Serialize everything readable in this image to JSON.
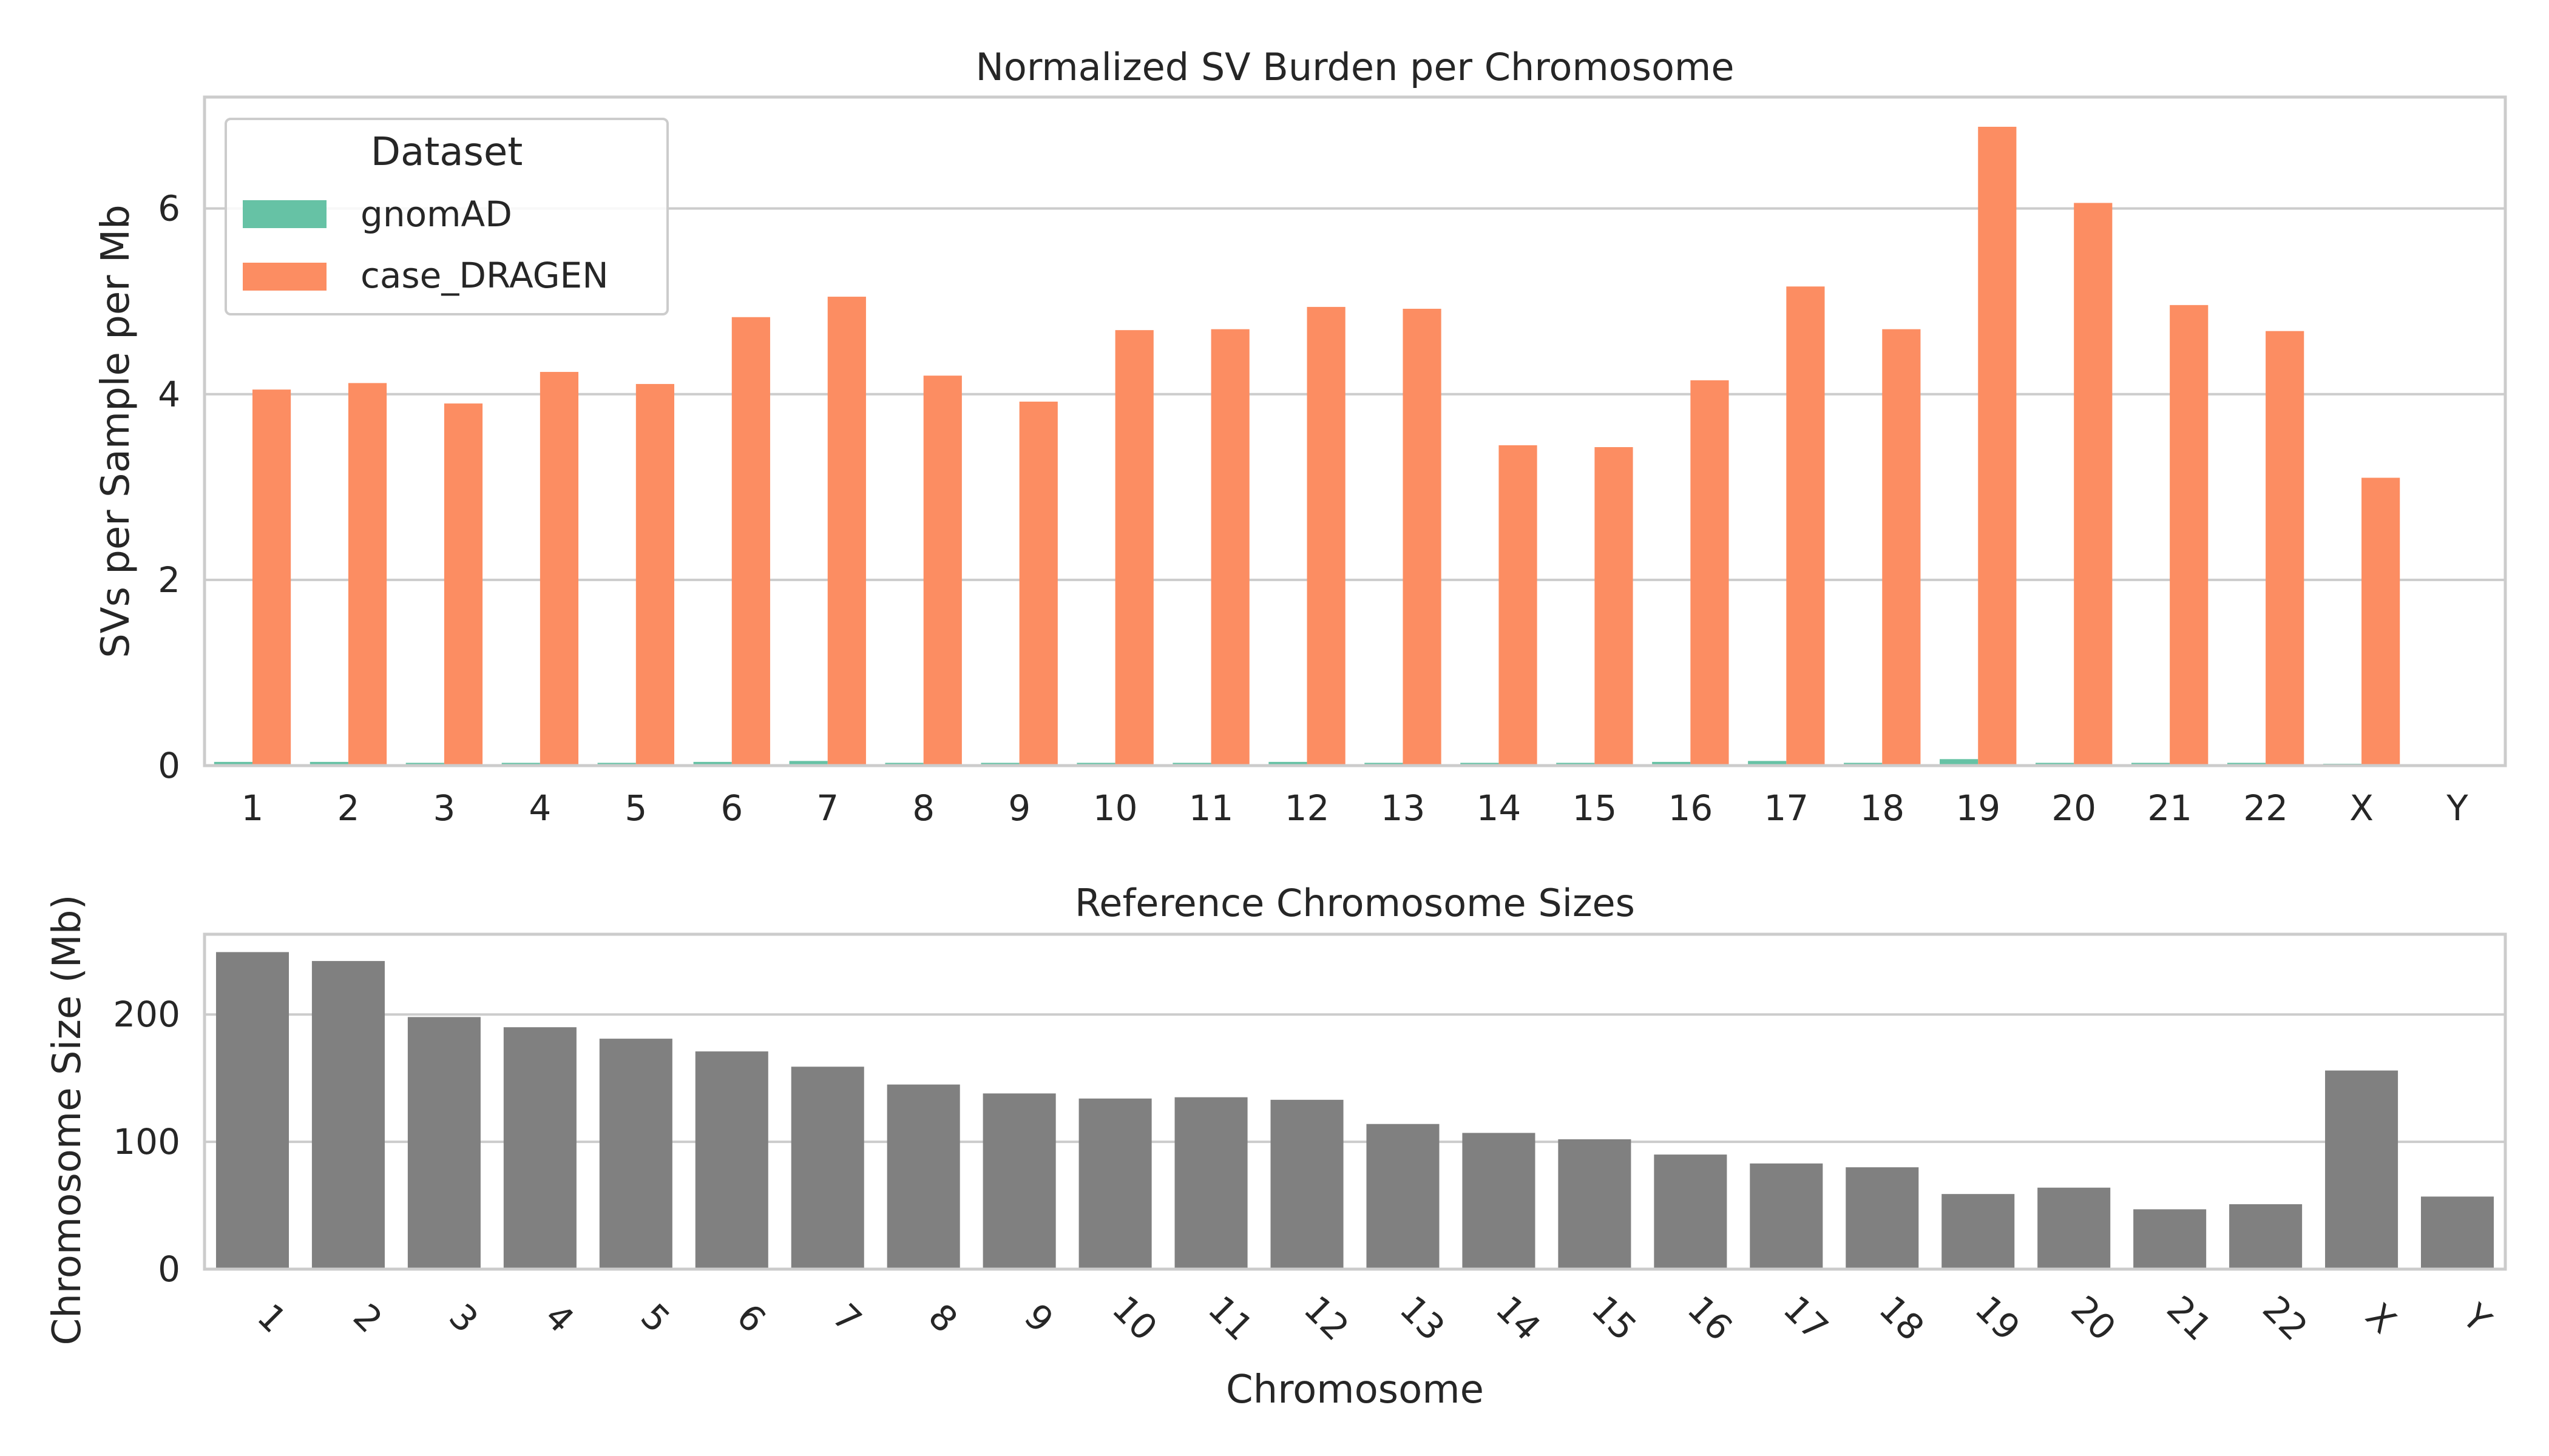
{
  "colors": {
    "gnomAD": "#66c2a5",
    "case_DRAGEN": "#fc8d62",
    "size_bar": "#808080",
    "grid": "#cccccc",
    "spine": "#cccccc",
    "text": "#262626"
  },
  "chart_data": [
    {
      "type": "bar",
      "title": "Normalized SV Burden per Chromosome",
      "xlabel": "",
      "ylabel": "SVs per Sample per Mb",
      "ylim": [
        0,
        7.2
      ],
      "yticks": [
        0,
        2,
        4,
        6
      ],
      "grid": true,
      "legend": {
        "title": "Dataset",
        "placement": "upper-left"
      },
      "categories": [
        "1",
        "2",
        "3",
        "4",
        "5",
        "6",
        "7",
        "8",
        "9",
        "10",
        "11",
        "12",
        "13",
        "14",
        "15",
        "16",
        "17",
        "18",
        "19",
        "20",
        "21",
        "22",
        "X",
        "Y"
      ],
      "series": [
        {
          "name": "gnomAD",
          "values": [
            0.04,
            0.04,
            0.03,
            0.03,
            0.03,
            0.04,
            0.05,
            0.03,
            0.03,
            0.03,
            0.03,
            0.04,
            0.03,
            0.03,
            0.03,
            0.04,
            0.05,
            0.03,
            0.07,
            0.03,
            0.03,
            0.03,
            0.02,
            0.0
          ]
        },
        {
          "name": "case_DRAGEN",
          "values": [
            4.05,
            4.12,
            3.9,
            4.24,
            4.11,
            4.83,
            5.05,
            4.2,
            3.92,
            4.69,
            4.7,
            4.94,
            4.92,
            3.45,
            3.43,
            4.15,
            5.16,
            4.7,
            6.88,
            6.06,
            4.96,
            4.68,
            3.1,
            0.0
          ]
        }
      ]
    },
    {
      "type": "bar",
      "title": "Reference Chromosome Sizes",
      "xlabel": "Chromosome",
      "ylabel": "Chromosome Size (Mb)",
      "ylim": [
        0,
        263
      ],
      "yticks": [
        0,
        100,
        200
      ],
      "grid": true,
      "tick_rotation": 45,
      "categories": [
        "1",
        "2",
        "3",
        "4",
        "5",
        "6",
        "7",
        "8",
        "9",
        "10",
        "11",
        "12",
        "13",
        "14",
        "15",
        "16",
        "17",
        "18",
        "19",
        "20",
        "21",
        "22",
        "X",
        "Y"
      ],
      "values": [
        249,
        242,
        198,
        190,
        181,
        171,
        159,
        145,
        138,
        134,
        135,
        133,
        114,
        107,
        102,
        90,
        83,
        80,
        59,
        64,
        47,
        51,
        156,
        57
      ]
    }
  ]
}
